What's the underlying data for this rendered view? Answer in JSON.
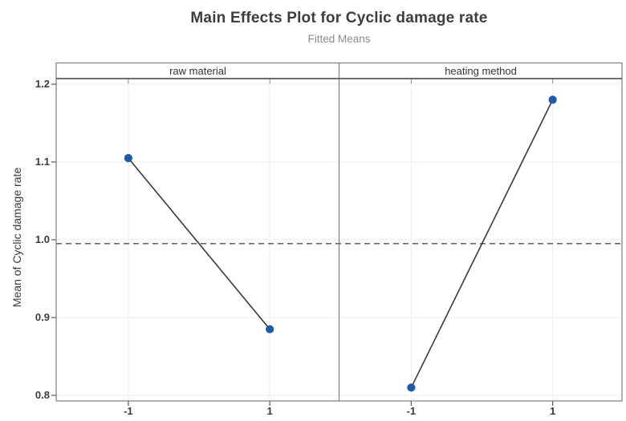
{
  "chart_data": {
    "type": "line",
    "title": "Main Effects Plot for Cyclic damage rate",
    "subtitle": "Fitted Means",
    "ylabel": "Mean of Cyclic damage rate",
    "xlabel": "",
    "ylim": [
      0.79,
      1.21
    ],
    "grid": true,
    "legend_position": "none",
    "yticks": [
      {
        "label": "1.2",
        "value": 1.2
      },
      {
        "label": "1.1",
        "value": 1.1
      },
      {
        "label": "1.0",
        "value": 1.0
      },
      {
        "label": "0.9",
        "value": 0.9
      },
      {
        "label": "0.8",
        "value": 0.8
      }
    ],
    "grand_mean": 0.995,
    "grand_mean_line": "dashed",
    "panels": [
      {
        "label": "raw material",
        "xticks": [
          {
            "label": "-1",
            "value": -1
          },
          {
            "label": "1",
            "value": 1
          }
        ],
        "points": [
          {
            "x": -1,
            "y": 1.105
          },
          {
            "x": 1,
            "y": 0.885
          }
        ]
      },
      {
        "label": "heating method",
        "xticks": [
          {
            "label": "-1",
            "value": -1
          },
          {
            "label": "1",
            "value": 1
          }
        ],
        "points": [
          {
            "x": -1,
            "y": 0.81
          },
          {
            "x": 1,
            "y": 1.18
          }
        ]
      }
    ],
    "colors": {
      "marker": "#1f5aa5",
      "series_line": "#3a3a3a",
      "mean_line": "#4d4d4d",
      "frame": "#7d7d7d",
      "header_rule": "#5a5a5a",
      "tick": "#555555",
      "grid_line": "#ececec",
      "title_text": "#3d3d3d",
      "subtitle_text": "#8c8c8c",
      "tick_text": "#3a3a3a"
    }
  }
}
